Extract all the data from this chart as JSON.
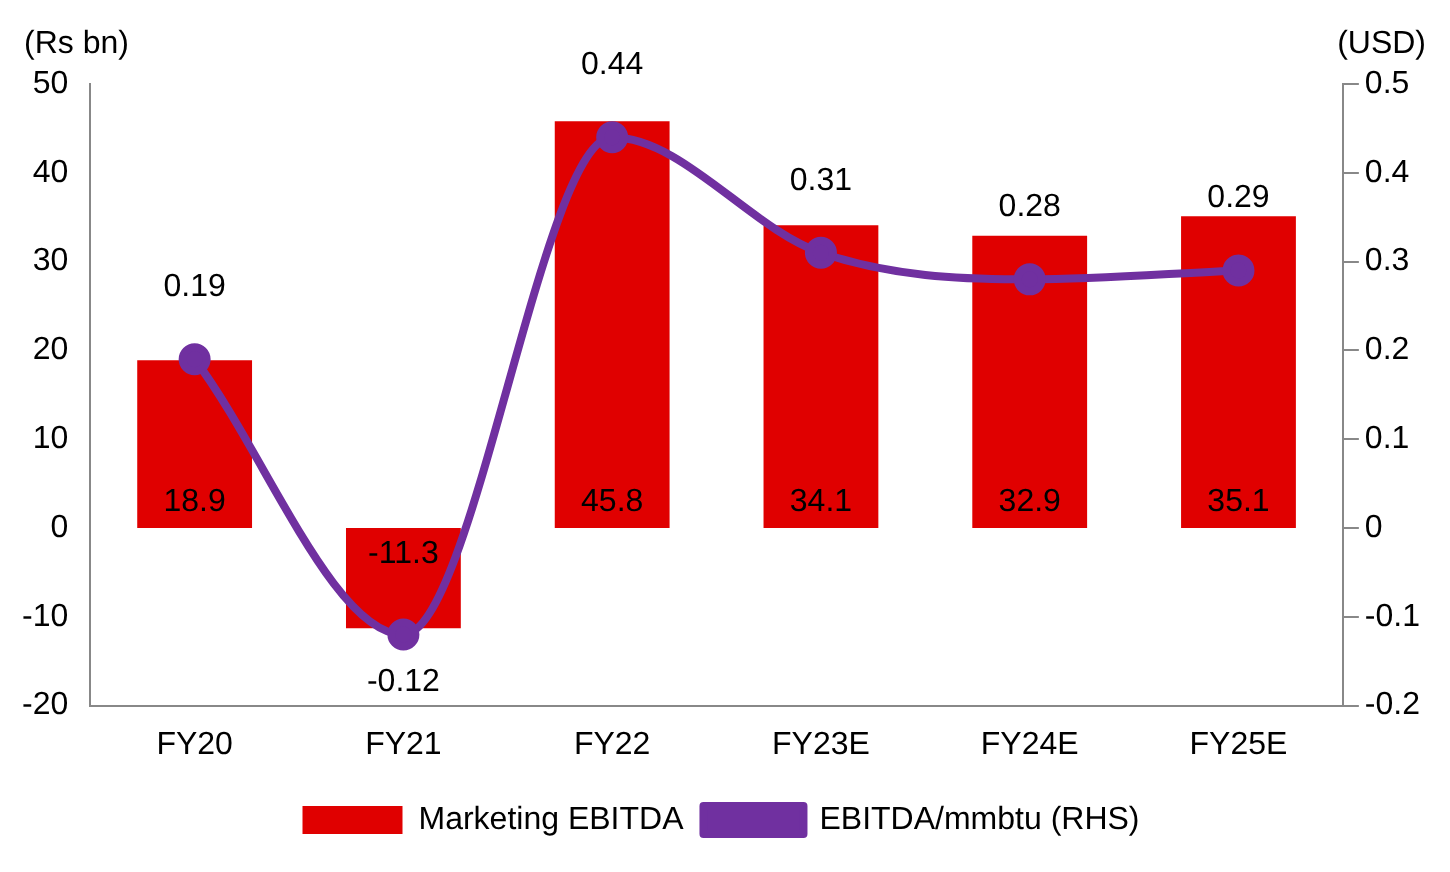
{
  "chart_data": {
    "type": "bar",
    "categories": [
      "FY20",
      "FY21",
      "FY22",
      "FY23E",
      "FY24E",
      "FY25E"
    ],
    "series": [
      {
        "name": "Marketing EBITDA",
        "color": "#e00000",
        "values": [
          18.9,
          -11.3,
          45.8,
          34.1,
          32.9,
          35.1
        ]
      },
      {
        "name": "EBITDA/mmbtu (RHS)",
        "type": "line",
        "axis": "y2",
        "color": "#7030a0",
        "values": [
          0.19,
          -0.12,
          0.44,
          0.31,
          0.28,
          0.29
        ]
      }
    ],
    "ylabel": "(Rs bn)",
    "y2label": "(USD)",
    "ylim": [
      -20,
      50
    ],
    "yticks": [
      -20,
      -10,
      0,
      10,
      20,
      30,
      40,
      50
    ],
    "y2lim": [
      -0.2,
      0.5
    ],
    "y2ticks": [
      -0.2,
      -0.1,
      0,
      0.1,
      0.2,
      0.3,
      0.4,
      0.5
    ],
    "data_labels": true,
    "legend": "bottom",
    "grid": false,
    "marker": "circle"
  }
}
